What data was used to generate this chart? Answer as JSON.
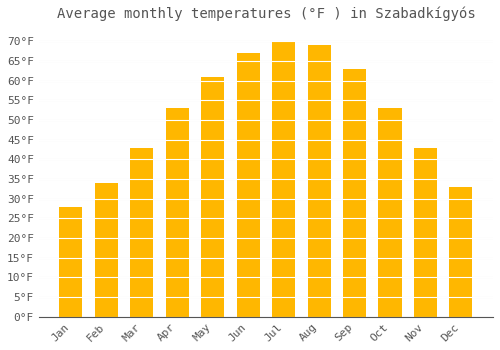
{
  "title": "Average monthly temperatures (°F ) in Szabadkígyós",
  "months": [
    "Jan",
    "Feb",
    "Mar",
    "Apr",
    "May",
    "Jun",
    "Jul",
    "Aug",
    "Sep",
    "Oct",
    "Nov",
    "Dec"
  ],
  "values": [
    28,
    34,
    43,
    53,
    61,
    67,
    70,
    69,
    63,
    53,
    43,
    33
  ],
  "bar_color": "#FFA500",
  "bar_color2": "#FFB700",
  "background_color": "#FFFFFF",
  "grid_color": "#DDDDDD",
  "text_color": "#555555",
  "ylim": [
    0,
    73
  ],
  "yticks": [
    0,
    5,
    10,
    15,
    20,
    25,
    30,
    35,
    40,
    45,
    50,
    55,
    60,
    65,
    70
  ],
  "ytick_labels": [
    "0°F",
    "5°F",
    "10°F",
    "15°F",
    "20°F",
    "25°F",
    "30°F",
    "35°F",
    "40°F",
    "45°F",
    "50°F",
    "55°F",
    "60°F",
    "65°F",
    "70°F"
  ],
  "title_fontsize": 10,
  "tick_fontsize": 8,
  "font_family": "monospace",
  "bar_width": 0.65
}
